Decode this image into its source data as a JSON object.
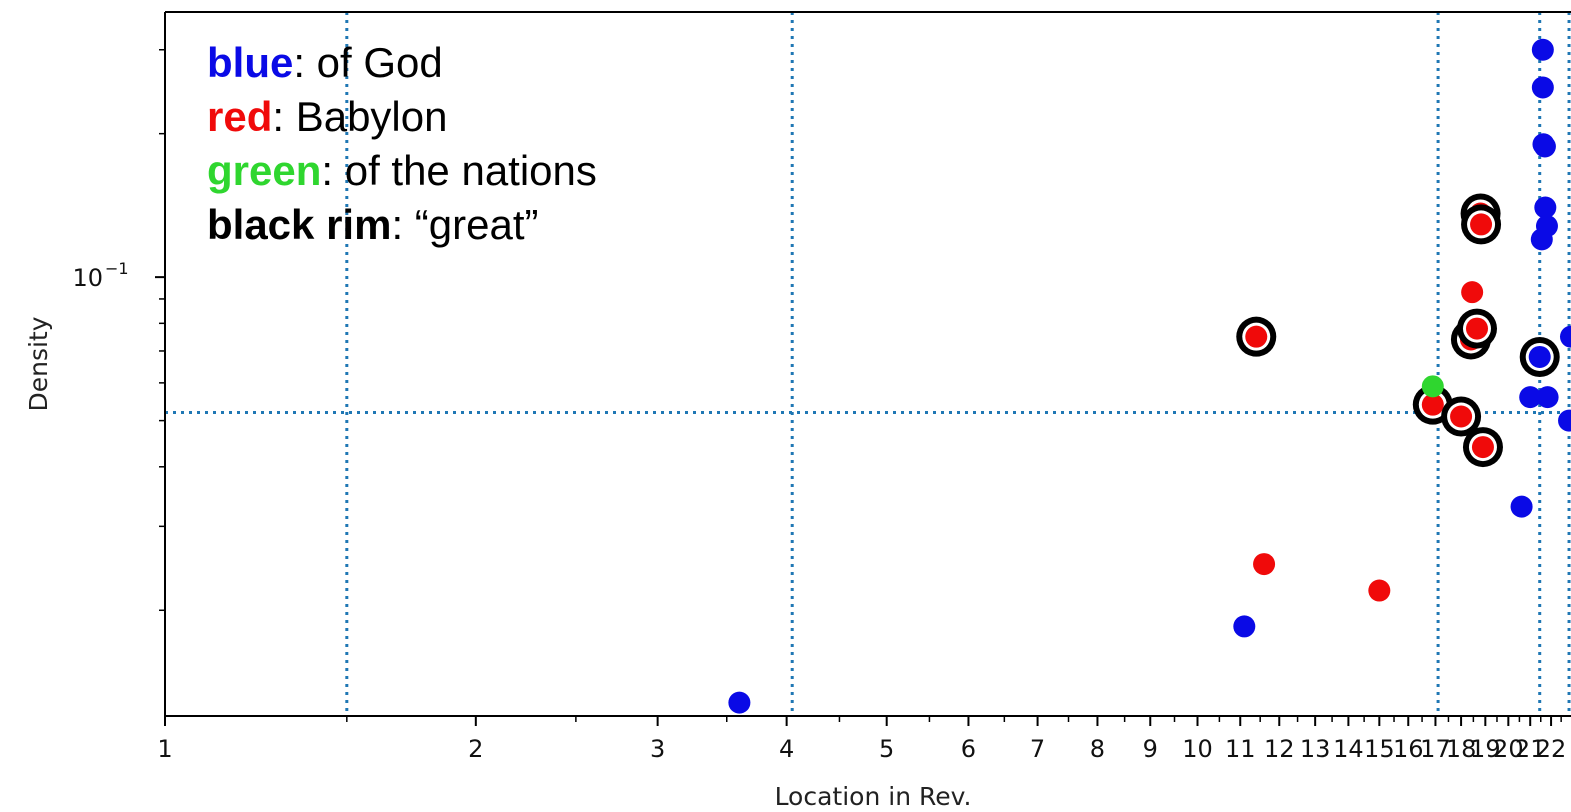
{
  "chart_data": {
    "type": "scatter",
    "xlabel": "Location in Rev.",
    "ylabel": "Density",
    "yscale": "log",
    "xlim": [
      1,
      23
    ],
    "ylim": [
      0.012,
      0.36
    ],
    "grid": false,
    "x_ticks": [
      {
        "value": 1,
        "label": "1"
      },
      {
        "value": 2,
        "label": "2"
      },
      {
        "value": 3,
        "label": "3"
      },
      {
        "value": 4,
        "label": "4"
      },
      {
        "value": 5,
        "label": "5"
      },
      {
        "value": 6,
        "label": "6"
      },
      {
        "value": 7,
        "label": "7"
      },
      {
        "value": 8,
        "label": "8"
      },
      {
        "value": 9,
        "label": "9"
      },
      {
        "value": 10,
        "label": "10"
      },
      {
        "value": 11,
        "label": "11"
      },
      {
        "value": 12,
        "label": "12"
      },
      {
        "value": 13,
        "label": "13"
      },
      {
        "value": 14,
        "label": "14"
      },
      {
        "value": 15,
        "label": "15"
      },
      {
        "value": 16,
        "label": "16"
      },
      {
        "value": 17,
        "label": "17"
      },
      {
        "value": 18,
        "label": "18"
      },
      {
        "value": 19,
        "label": "19"
      },
      {
        "value": 20,
        "label": "20"
      },
      {
        "value": 21,
        "label": "21"
      },
      {
        "value": 22,
        "label": "22"
      }
    ],
    "y_ticks": [
      {
        "value": 0.1,
        "label_base": "10",
        "label_exp": "−1"
      }
    ],
    "reference_lines": {
      "vertical": [
        1.5,
        4.05,
        17.1,
        21.45,
        22.9
      ],
      "horizontal": [
        0.052
      ]
    },
    "legend": [
      {
        "key": "blue",
        "text": ": of God",
        "color": "#0a0ae6"
      },
      {
        "key": "red",
        "text": ": Babylon",
        "color": "#f00a0a"
      },
      {
        "key": "green",
        "text": ": of the nations",
        "color": "#2fd62f"
      },
      {
        "key": "black rim",
        "text": ": “great”",
        "color": "#000000"
      }
    ],
    "colors": {
      "blue": "#0a0ae6",
      "red": "#f00a0a",
      "green": "#2fd62f",
      "rim": "#000000",
      "reference_line": "#1f77b4"
    },
    "series": [
      {
        "key": "blue",
        "color": "#0a0ae6",
        "points": [
          {
            "x": 3.6,
            "y": 0.0128,
            "rim": false
          },
          {
            "x": 11.1,
            "y": 0.0185,
            "rim": false
          },
          {
            "x": 20.6,
            "y": 0.033,
            "rim": false
          },
          {
            "x": 21.0,
            "y": 0.056,
            "rim": false
          },
          {
            "x": 21.45,
            "y": 0.068,
            "rim": true
          },
          {
            "x": 21.55,
            "y": 0.12,
            "rim": false
          },
          {
            "x": 21.6,
            "y": 0.3,
            "rim": false
          },
          {
            "x": 21.6,
            "y": 0.25,
            "rim": false
          },
          {
            "x": 21.63,
            "y": 0.19,
            "rim": false
          },
          {
            "x": 21.7,
            "y": 0.188,
            "rim": false
          },
          {
            "x": 21.72,
            "y": 0.14,
            "rim": false
          },
          {
            "x": 21.8,
            "y": 0.128,
            "rim": false
          },
          {
            "x": 21.83,
            "y": 0.056,
            "rim": false
          },
          {
            "x": 22.9,
            "y": 0.05,
            "rim": false
          },
          {
            "x": 23.0,
            "y": 0.075,
            "rim": false
          }
        ]
      },
      {
        "key": "red",
        "color": "#f00a0a",
        "points": [
          {
            "x": 11.4,
            "y": 0.075,
            "rim": true
          },
          {
            "x": 11.6,
            "y": 0.025,
            "rim": false
          },
          {
            "x": 15.0,
            "y": 0.022,
            "rim": false
          },
          {
            "x": 16.9,
            "y": 0.054,
            "rim": true
          },
          {
            "x": 18.0,
            "y": 0.051,
            "rim": true
          },
          {
            "x": 18.4,
            "y": 0.074,
            "rim": true
          },
          {
            "x": 18.45,
            "y": 0.093,
            "rim": false
          },
          {
            "x": 18.65,
            "y": 0.078,
            "rim": true
          },
          {
            "x": 18.8,
            "y": 0.136,
            "rim": true
          },
          {
            "x": 18.82,
            "y": 0.129,
            "rim": true
          },
          {
            "x": 18.9,
            "y": 0.044,
            "rim": true
          }
        ]
      },
      {
        "key": "green",
        "color": "#2fd62f",
        "points": [
          {
            "x": 16.9,
            "y": 0.059,
            "rim": false
          }
        ]
      }
    ]
  }
}
